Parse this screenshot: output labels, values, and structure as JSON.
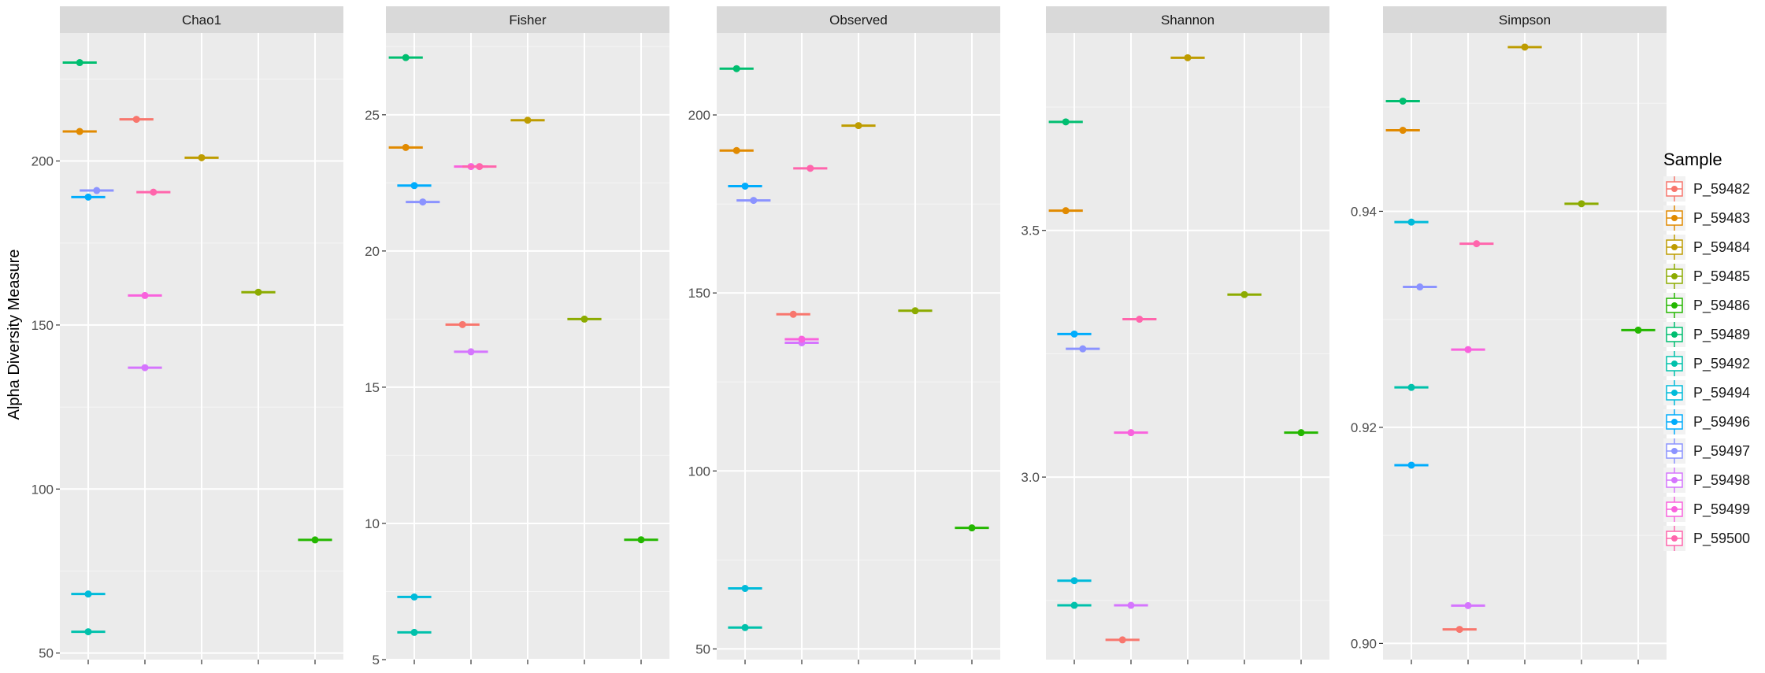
{
  "chart_data": {
    "type": "scatter",
    "ylabel": "Alpha Diversity Measure",
    "legend": {
      "title": "Sample",
      "position": "right",
      "entries": [
        {
          "name": "P_59482",
          "color": "#F8766D"
        },
        {
          "name": "P_59483",
          "color": "#E18A00"
        },
        {
          "name": "P_59484",
          "color": "#BE9C00"
        },
        {
          "name": "P_59485",
          "color": "#8CAB00"
        },
        {
          "name": "P_59486",
          "color": "#24B700"
        },
        {
          "name": "P_59489",
          "color": "#00BE70"
        },
        {
          "name": "P_59492",
          "color": "#00C1AB"
        },
        {
          "name": "P_59494",
          "color": "#00BBDA"
        },
        {
          "name": "P_59496",
          "color": "#00ACFC"
        },
        {
          "name": "P_59497",
          "color": "#8B93FF"
        },
        {
          "name": "P_59498",
          "color": "#D575FE"
        },
        {
          "name": "P_59499",
          "color": "#F962DD"
        },
        {
          "name": "P_59500",
          "color": "#FF65AC"
        }
      ]
    },
    "panels": [
      {
        "title": "Chao1",
        "ylim": [
          48,
          239
        ],
        "yticks": [
          50,
          100,
          150,
          200
        ],
        "xgroups": 5,
        "points": [
          {
            "sample": "P_59482",
            "group": 1,
            "offset": -0.15,
            "value": 212.7
          },
          {
            "sample": "P_59483",
            "group": 0,
            "offset": -0.15,
            "value": 209.0
          },
          {
            "sample": "P_59484",
            "group": 2,
            "offset": 0,
            "value": 201.0
          },
          {
            "sample": "P_59485",
            "group": 3,
            "offset": 0,
            "value": 160.0
          },
          {
            "sample": "P_59486",
            "group": 4,
            "offset": 0,
            "value": 84.5
          },
          {
            "sample": "P_59489",
            "group": 0,
            "offset": -0.15,
            "value": 230.0
          },
          {
            "sample": "P_59492",
            "group": 0,
            "offset": 0,
            "value": 56.5
          },
          {
            "sample": "P_59494",
            "group": 0,
            "offset": 0,
            "value": 68.0
          },
          {
            "sample": "P_59496",
            "group": 0,
            "offset": 0,
            "value": 189.0
          },
          {
            "sample": "P_59497",
            "group": 0,
            "offset": 0.15,
            "value": 191.0
          },
          {
            "sample": "P_59498",
            "group": 1,
            "offset": 0,
            "value": 137.0
          },
          {
            "sample": "P_59499",
            "group": 1,
            "offset": 0,
            "value": 159.0
          },
          {
            "sample": "P_59500",
            "group": 1,
            "offset": 0.15,
            "value": 190.5
          }
        ]
      },
      {
        "title": "Fisher",
        "ylim": [
          5,
          28
        ],
        "yticks": [
          5,
          10,
          15,
          20,
          25
        ],
        "xgroups": 5,
        "points": [
          {
            "sample": "P_59482",
            "group": 1,
            "offset": -0.15,
            "value": 17.3
          },
          {
            "sample": "P_59483",
            "group": 0,
            "offset": -0.15,
            "value": 23.8
          },
          {
            "sample": "P_59484",
            "group": 2,
            "offset": 0,
            "value": 24.8
          },
          {
            "sample": "P_59485",
            "group": 3,
            "offset": 0,
            "value": 17.5
          },
          {
            "sample": "P_59486",
            "group": 4,
            "offset": 0,
            "value": 9.4
          },
          {
            "sample": "P_59489",
            "group": 0,
            "offset": -0.15,
            "value": 27.1
          },
          {
            "sample": "P_59492",
            "group": 0,
            "offset": 0,
            "value": 6.0
          },
          {
            "sample": "P_59494",
            "group": 0,
            "offset": 0,
            "value": 7.3
          },
          {
            "sample": "P_59496",
            "group": 0,
            "offset": 0,
            "value": 22.4
          },
          {
            "sample": "P_59497",
            "group": 0,
            "offset": 0.15,
            "value": 21.8
          },
          {
            "sample": "P_59498",
            "group": 1,
            "offset": 0,
            "value": 16.3
          },
          {
            "sample": "P_59499",
            "group": 1,
            "offset": 0,
            "value": 23.1
          },
          {
            "sample": "P_59500",
            "group": 1,
            "offset": 0.15,
            "value": 23.1
          }
        ]
      },
      {
        "title": "Observed",
        "ylim": [
          47,
          223
        ],
        "yticks": [
          50,
          100,
          150,
          200
        ],
        "xgroups": 5,
        "points": [
          {
            "sample": "P_59482",
            "group": 1,
            "offset": -0.15,
            "value": 144.0
          },
          {
            "sample": "P_59483",
            "group": 0,
            "offset": -0.15,
            "value": 190.0
          },
          {
            "sample": "P_59484",
            "group": 2,
            "offset": 0,
            "value": 197.0
          },
          {
            "sample": "P_59485",
            "group": 3,
            "offset": 0,
            "value": 145.0
          },
          {
            "sample": "P_59486",
            "group": 4,
            "offset": 0,
            "value": 84.0
          },
          {
            "sample": "P_59489",
            "group": 0,
            "offset": -0.15,
            "value": 213.0
          },
          {
            "sample": "P_59492",
            "group": 0,
            "offset": 0,
            "value": 56.0
          },
          {
            "sample": "P_59494",
            "group": 0,
            "offset": 0,
            "value": 67.0
          },
          {
            "sample": "P_59496",
            "group": 0,
            "offset": 0,
            "value": 180.0
          },
          {
            "sample": "P_59497",
            "group": 0,
            "offset": 0.15,
            "value": 176.0
          },
          {
            "sample": "P_59498",
            "group": 1,
            "offset": 0,
            "value": 136.0
          },
          {
            "sample": "P_59499",
            "group": 1,
            "offset": 0,
            "value": 137.0
          },
          {
            "sample": "P_59500",
            "group": 1,
            "offset": 0.15,
            "value": 185.0
          }
        ]
      },
      {
        "title": "Shannon",
        "ylim": [
          2.63,
          3.9
        ],
        "yticks": [
          3.0,
          3.5
        ],
        "xgroups": 5,
        "points": [
          {
            "sample": "P_59482",
            "group": 1,
            "offset": -0.15,
            "value": 2.67
          },
          {
            "sample": "P_59483",
            "group": 0,
            "offset": -0.15,
            "value": 3.54
          },
          {
            "sample": "P_59484",
            "group": 2,
            "offset": 0,
            "value": 3.85
          },
          {
            "sample": "P_59485",
            "group": 3,
            "offset": 0,
            "value": 3.37
          },
          {
            "sample": "P_59486",
            "group": 4,
            "offset": 0,
            "value": 3.09
          },
          {
            "sample": "P_59489",
            "group": 0,
            "offset": -0.15,
            "value": 3.72
          },
          {
            "sample": "P_59492",
            "group": 0,
            "offset": 0,
            "value": 2.74
          },
          {
            "sample": "P_59494",
            "group": 0,
            "offset": 0,
            "value": 2.79
          },
          {
            "sample": "P_59496",
            "group": 0,
            "offset": 0,
            "value": 3.29
          },
          {
            "sample": "P_59497",
            "group": 0,
            "offset": 0.15,
            "value": 3.26
          },
          {
            "sample": "P_59498",
            "group": 1,
            "offset": 0,
            "value": 2.74
          },
          {
            "sample": "P_59499",
            "group": 1,
            "offset": 0,
            "value": 3.09
          },
          {
            "sample": "P_59500",
            "group": 1,
            "offset": 0.15,
            "value": 3.32
          }
        ]
      },
      {
        "title": "Simpson",
        "ylim": [
          0.8985,
          0.9565
        ],
        "yticks": [
          0.9,
          0.92,
          0.94
        ],
        "xgroups": 5,
        "points": [
          {
            "sample": "P_59482",
            "group": 1,
            "offset": -0.15,
            "value": 0.9013
          },
          {
            "sample": "P_59483",
            "group": 0,
            "offset": -0.15,
            "value": 0.9475
          },
          {
            "sample": "P_59484",
            "group": 2,
            "offset": 0,
            "value": 0.9552
          },
          {
            "sample": "P_59485",
            "group": 3,
            "offset": 0,
            "value": 0.9407
          },
          {
            "sample": "P_59486",
            "group": 4,
            "offset": 0,
            "value": 0.929
          },
          {
            "sample": "P_59489",
            "group": 0,
            "offset": -0.15,
            "value": 0.9502
          },
          {
            "sample": "P_59492",
            "group": 0,
            "offset": 0,
            "value": 0.9237
          },
          {
            "sample": "P_59494",
            "group": 0,
            "offset": 0,
            "value": 0.939
          },
          {
            "sample": "P_59496",
            "group": 0,
            "offset": 0,
            "value": 0.9165
          },
          {
            "sample": "P_59497",
            "group": 0,
            "offset": 0.15,
            "value": 0.933
          },
          {
            "sample": "P_59498",
            "group": 1,
            "offset": 0,
            "value": 0.9035
          },
          {
            "sample": "P_59499",
            "group": 1,
            "offset": 0,
            "value": 0.9272
          },
          {
            "sample": "P_59500",
            "group": 1,
            "offset": 0.15,
            "value": 0.937
          }
        ]
      }
    ]
  }
}
